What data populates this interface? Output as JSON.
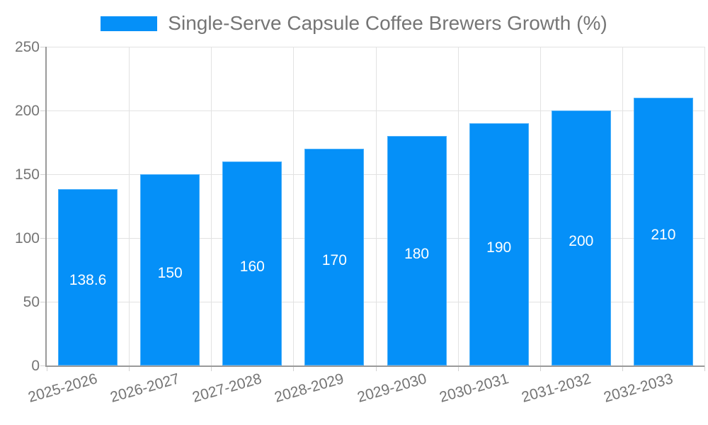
{
  "chart_data": {
    "type": "bar",
    "title": "Single-Serve Capsule Coffee Brewers Growth (%)",
    "legend_position": "top-center",
    "categories": [
      "2025-2026",
      "2026-2027",
      "2027-2028",
      "2028-2029",
      "2029-2030",
      "2030-2031",
      "2031-2032",
      "2032-2033"
    ],
    "values": [
      138.6,
      150,
      160,
      170,
      180,
      190,
      200,
      210
    ],
    "value_labels": [
      "138.6",
      "150",
      "160",
      "170",
      "180",
      "190",
      "200",
      "210"
    ],
    "xlabel": "",
    "ylabel": "",
    "ylim": [
      0,
      250
    ],
    "yticks": [
      0,
      50,
      100,
      150,
      200,
      250
    ],
    "grid": true,
    "colors": {
      "bar_fill": "#0590f8",
      "grid_line": "#e2e2e2",
      "axis_line": "#9a9a9a",
      "tick_mark": "#d2d2d2",
      "label_text": "#757575",
      "value_text": "#ffffff",
      "background": "#ffffff"
    }
  }
}
